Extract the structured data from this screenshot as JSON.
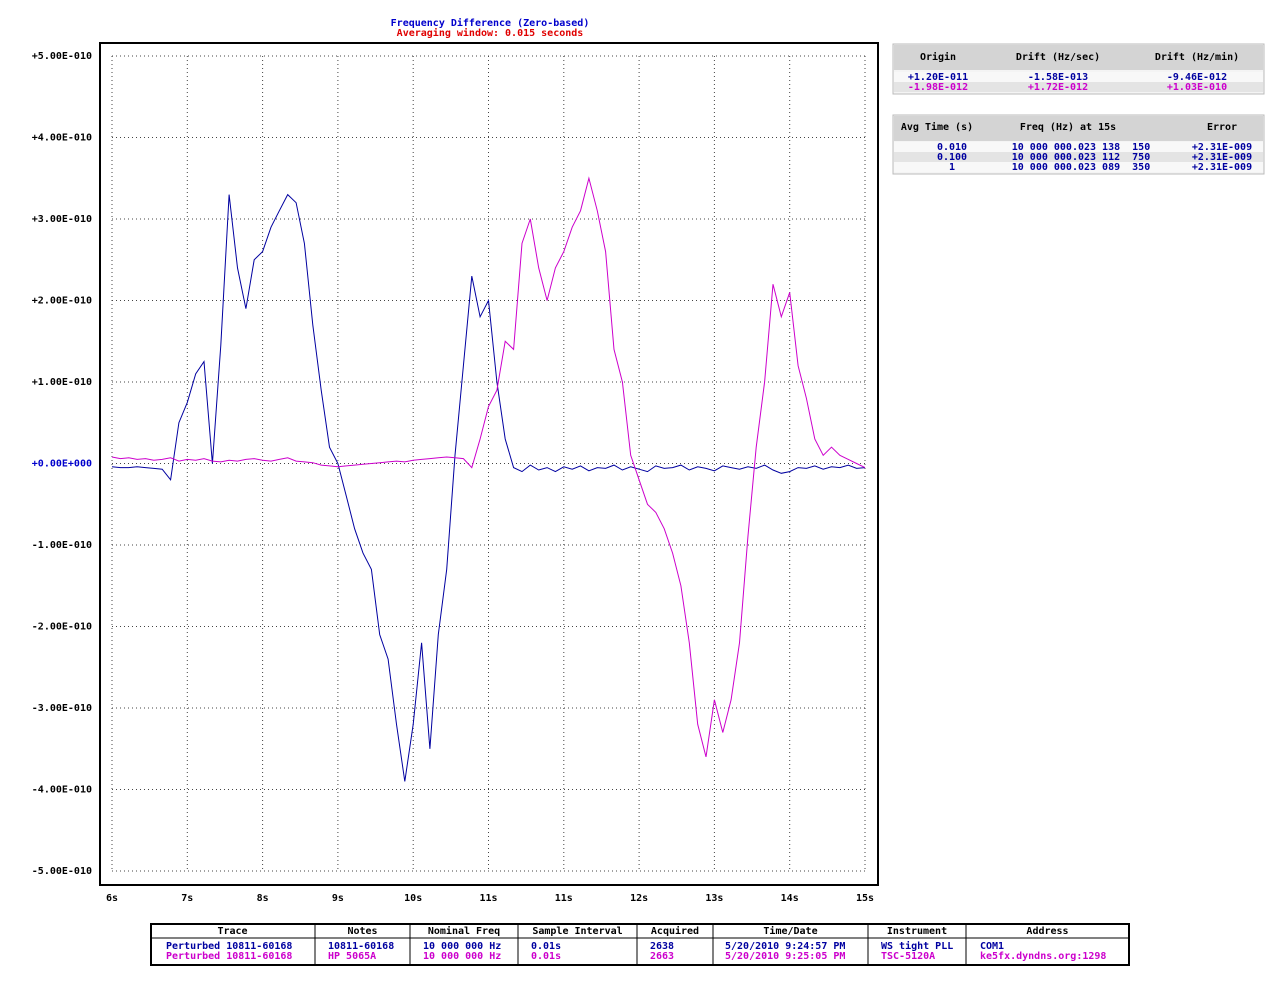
{
  "chart_data": {
    "type": "line",
    "title": "Frequency Difference (Zero-based)",
    "subtitle": "Averaging window: 0.015 seconds",
    "x": [
      6,
      6.1,
      6.2,
      6.3,
      6.4,
      6.5,
      6.6,
      6.7,
      6.8,
      6.9,
      7,
      7.1,
      7.2,
      7.3,
      7.4,
      7.5,
      7.6,
      7.7,
      7.8,
      7.9,
      8,
      8.1,
      8.2,
      8.3,
      8.4,
      8.5,
      8.6,
      8.7,
      8.8,
      8.9,
      9,
      9.1,
      9.2,
      9.3,
      9.4,
      9.5,
      9.6,
      9.7,
      9.8,
      9.9,
      10,
      10.1,
      10.2,
      10.3,
      10.4,
      10.5,
      10.6,
      10.7,
      10.8,
      10.9,
      11,
      11.1,
      11.2,
      11.3,
      11.4,
      11.5,
      11.6,
      11.7,
      11.8,
      11.9,
      12,
      12.1,
      12.2,
      12.3,
      12.4,
      12.5,
      12.6,
      12.7,
      12.8,
      12.9,
      13,
      13.1,
      13.2,
      13.3,
      13.4,
      13.5,
      13.6,
      13.7,
      13.8,
      13.9,
      14,
      14.1,
      14.2,
      14.3,
      14.4,
      14.5,
      14.6,
      14.7,
      14.8,
      14.9,
      15
    ],
    "series": [
      {
        "name": "Perturbed 10811-60168",
        "color": "#0000a0",
        "values": [
          -4e-12,
          -5e-12,
          -5e-12,
          -4e-12,
          -5e-12,
          -6e-12,
          -7e-12,
          -2e-11,
          5e-11,
          7.5e-11,
          1.1e-10,
          1.25e-10,
          0,
          1.45e-10,
          3.3e-10,
          2.4e-10,
          1.9e-10,
          2.5e-10,
          2.6e-10,
          2.9e-10,
          3.1e-10,
          3.3e-10,
          3.2e-10,
          2.7e-10,
          1.7e-10,
          9e-11,
          2e-11,
          0,
          -4e-11,
          -8e-11,
          -1.1e-10,
          -1.3e-10,
          -2.1e-10,
          -2.4e-10,
          -3.2e-10,
          -3.9e-10,
          -3.2e-10,
          -2.2e-10,
          -3.5e-10,
          -2.1e-10,
          -1.3e-10,
          1e-11,
          1.2e-10,
          2.3e-10,
          1.8e-10,
          2e-10,
          1e-10,
          3e-11,
          -5e-12,
          -1e-11,
          -2e-12,
          -8e-12,
          -5e-12,
          -1e-11,
          -4e-12,
          -7e-12,
          -3e-12,
          -9e-12,
          -5e-12,
          -6e-12,
          -2e-12,
          -8e-12,
          -4e-12,
          -7e-12,
          -1e-11,
          -3e-12,
          -6e-12,
          -5e-12,
          -2e-12,
          -8e-12,
          -4e-12,
          -6e-12,
          -9e-12,
          -3e-12,
          -5e-12,
          -7e-12,
          -4e-12,
          -6e-12,
          -2e-12,
          -8e-12,
          -1.2e-11,
          -1e-11,
          -5e-12,
          -6e-12,
          -3e-12,
          -7e-12,
          -4e-12,
          -5e-12,
          -2e-12,
          -6e-12,
          -5e-12
        ]
      },
      {
        "name": "Perturbed 10811-60168",
        "color": "#cc00cc",
        "values": [
          8e-12,
          6e-12,
          7e-12,
          5e-12,
          6e-12,
          4e-12,
          5e-12,
          7e-12,
          3e-12,
          5e-12,
          4e-12,
          6e-12,
          3e-12,
          2e-12,
          4e-12,
          3e-12,
          5e-12,
          6e-12,
          4e-12,
          3e-12,
          5e-12,
          7e-12,
          3e-12,
          2e-12,
          1e-12,
          -2e-12,
          -3e-12,
          -4e-12,
          -3e-12,
          -2e-12,
          -1e-12,
          0,
          1e-12,
          2e-12,
          3e-12,
          2e-12,
          4e-12,
          5e-12,
          6e-12,
          7e-12,
          8e-12,
          7e-12,
          6e-12,
          -5e-12,
          3e-11,
          7e-11,
          9e-11,
          1.5e-10,
          1.4e-10,
          2.7e-10,
          3e-10,
          2.4e-10,
          2e-10,
          2.4e-10,
          2.6e-10,
          2.9e-10,
          3.1e-10,
          3.5e-10,
          3.1e-10,
          2.6e-10,
          1.4e-10,
          1e-10,
          1e-11,
          -2e-11,
          -5e-11,
          -6e-11,
          -8e-11,
          -1.1e-10,
          -1.5e-10,
          -2.2e-10,
          -3.2e-10,
          -3.6e-10,
          -2.9e-10,
          -3.3e-10,
          -2.9e-10,
          -2.2e-10,
          -9e-11,
          2e-11,
          1e-10,
          2.2e-10,
          1.8e-10,
          2.1e-10,
          1.2e-10,
          8e-11,
          3e-11,
          1e-11,
          2e-11,
          1e-11,
          5e-12,
          0,
          -5e-12
        ]
      }
    ],
    "xlim": [
      6,
      15
    ],
    "xticks": [
      {
        "value": 6,
        "label": "6s"
      },
      {
        "value": 6.9,
        "label": "7s"
      },
      {
        "value": 7.8,
        "label": "8s"
      },
      {
        "value": 8.7,
        "label": "9s"
      },
      {
        "value": 9.6,
        "label": "10s"
      },
      {
        "value": 10.5,
        "label": "11s"
      },
      {
        "value": 11.4,
        "label": "11s"
      },
      {
        "value": 12.3,
        "label": "12s"
      },
      {
        "value": 13.2,
        "label": "13s"
      },
      {
        "value": 14.1,
        "label": "14s"
      },
      {
        "value": 15,
        "label": "15s"
      }
    ],
    "ylim": [
      -5e-10,
      5e-10
    ],
    "yticks": [
      {
        "value": 5e-10,
        "label": "+5.00E-010"
      },
      {
        "value": 4e-10,
        "label": "+4.00E-010"
      },
      {
        "value": 3e-10,
        "label": "+3.00E-010"
      },
      {
        "value": 2e-10,
        "label": "+2.00E-010"
      },
      {
        "value": 1e-10,
        "label": "+1.00E-010"
      },
      {
        "value": 0,
        "label": "+0.00E+000"
      },
      {
        "value": -1e-10,
        "label": "-1.00E-010"
      },
      {
        "value": -2e-10,
        "label": "-2.00E-010"
      },
      {
        "value": -3e-10,
        "label": "-3.00E-010"
      },
      {
        "value": -4e-10,
        "label": "-4.00E-010"
      },
      {
        "value": -5e-10,
        "label": "-5.00E-010"
      }
    ],
    "grid": true
  },
  "origin_table": {
    "headers": [
      "Origin",
      "Drift (Hz/sec)",
      "Drift (Hz/min)"
    ],
    "rows": [
      [
        "+1.20E-011",
        "-1.58E-013",
        "-9.46E-012"
      ],
      [
        "-1.98E-012",
        "+1.72E-012",
        "+1.03E-010"
      ]
    ]
  },
  "freq_table": {
    "color": "#0000a0",
    "headers": [
      "Avg Time (s)",
      "Freq (Hz) at 15s",
      "Error"
    ],
    "rows": [
      [
        "0.010",
        "10 000 000.023 138  150",
        "+2.31E-009"
      ],
      [
        "0.100",
        "10 000 000.023 112  750",
        "+2.31E-009"
      ],
      [
        "1",
        "10 000 000.023 089  350",
        "+2.31E-009"
      ]
    ]
  },
  "trace_table": {
    "headers": [
      "Trace",
      "Notes",
      "Nominal Freq",
      "Sample Interval",
      "Acquired",
      "Time/Date",
      "Instrument",
      "Address"
    ],
    "rows": [
      [
        "Perturbed 10811-60168",
        "10811-60168",
        "10 000 000 Hz",
        "0.01s",
        "2638",
        "5/20/2010 9:24:57 PM",
        "WS tight PLL",
        "COM1"
      ],
      [
        "Perturbed 10811-60168",
        "HP 5065A",
        "10 000 000 Hz",
        "0.01s",
        "2663",
        "5/20/2010 9:25:05 PM",
        "TSC-5120A",
        "ke5fx.dyndns.org:1298"
      ]
    ]
  }
}
